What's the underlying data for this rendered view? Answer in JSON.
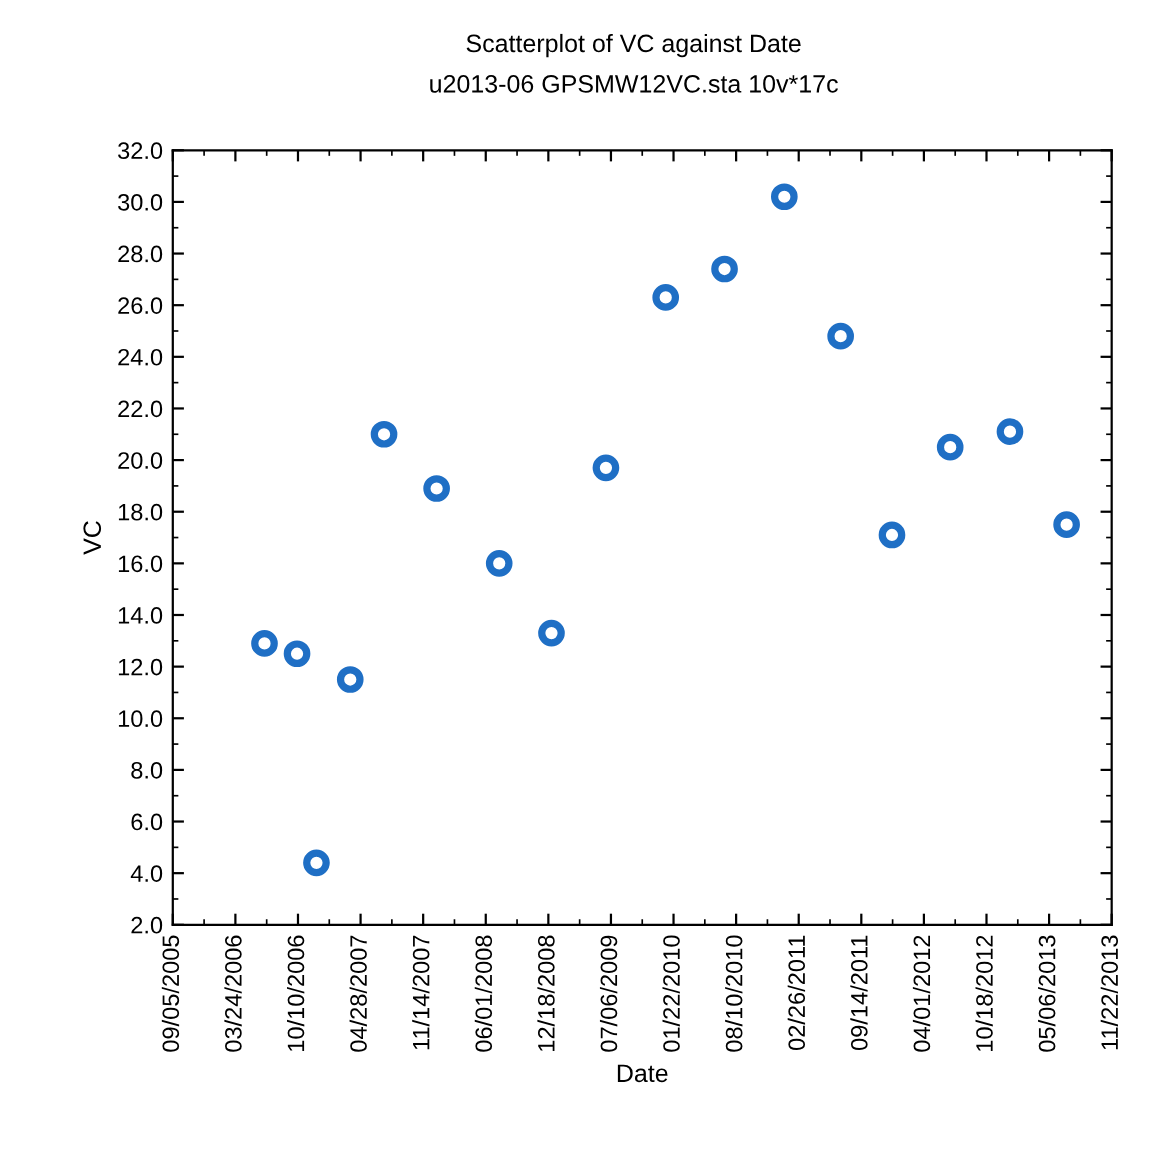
{
  "chart_data": {
    "type": "scatter",
    "title": "Scatterplot of VC against Date",
    "subtitle": "u2013-06 GPSMW12VC.sta 10v*17c",
    "xlabel": "Date",
    "ylabel": "VC",
    "x": [
      "2006-06-25",
      "2006-10-07",
      "2006-12-08",
      "2007-03-26",
      "2007-07-12",
      "2007-12-27",
      "2008-07-14",
      "2008-12-28",
      "2009-06-20",
      "2009-12-28",
      "2010-07-04",
      "2011-01-11",
      "2011-07-10",
      "2011-12-21",
      "2012-06-24",
      "2013-01-01",
      "2013-07-01"
    ],
    "series": [
      {
        "color": "#1f6fc5",
        "values": [
          12.9,
          12.5,
          4.4,
          11.5,
          21.0,
          18.9,
          16.0,
          13.3,
          19.7,
          26.3,
          27.4,
          30.2,
          24.8,
          17.1,
          20.5,
          21.1,
          17.5
        ]
      }
    ],
    "marker": "circle",
    "grid": false,
    "legend": false,
    "xlim": [
      "2005-09-05",
      "2013-11-22"
    ],
    "xticks": [
      {
        "value": "2005-09-05",
        "label": "09/05/2005"
      },
      {
        "value": "2006-03-24",
        "label": "03/24/2006"
      },
      {
        "value": "2006-10-10",
        "label": "10/10/2006"
      },
      {
        "value": "2007-04-28",
        "label": "04/28/2007"
      },
      {
        "value": "2007-11-14",
        "label": "11/14/2007"
      },
      {
        "value": "2008-06-01",
        "label": "06/01/2008"
      },
      {
        "value": "2008-12-18",
        "label": "12/18/2008"
      },
      {
        "value": "2009-07-06",
        "label": "07/06/2009"
      },
      {
        "value": "2010-01-22",
        "label": "01/22/2010"
      },
      {
        "value": "2010-08-10",
        "label": "08/10/2010"
      },
      {
        "value": "2011-02-26",
        "label": "02/26/2011"
      },
      {
        "value": "2011-09-14",
        "label": "09/14/2011"
      },
      {
        "value": "2012-04-01",
        "label": "04/01/2012"
      },
      {
        "value": "2012-10-18",
        "label": "10/18/2012"
      },
      {
        "value": "2013-05-06",
        "label": "05/06/2013"
      },
      {
        "value": "2013-11-22",
        "label": "11/22/2013"
      }
    ],
    "ylim": [
      2.0,
      32.0
    ],
    "yticks": [
      {
        "value": 2,
        "label": "2.0"
      },
      {
        "value": 4,
        "label": "4.0"
      },
      {
        "value": 6,
        "label": "6.0"
      },
      {
        "value": 8,
        "label": "8.0"
      },
      {
        "value": 10,
        "label": "10.0"
      },
      {
        "value": 12,
        "label": "12.0"
      },
      {
        "value": 14,
        "label": "14.0"
      },
      {
        "value": 16,
        "label": "16.0"
      },
      {
        "value": 18,
        "label": "18.0"
      },
      {
        "value": 20,
        "label": "20.0"
      },
      {
        "value": 22,
        "label": "22.0"
      },
      {
        "value": 24,
        "label": "24.0"
      },
      {
        "value": 26,
        "label": "26.0"
      },
      {
        "value": 28,
        "label": "28.0"
      },
      {
        "value": 30,
        "label": "30.0"
      },
      {
        "value": 32,
        "label": "32.0"
      }
    ]
  }
}
